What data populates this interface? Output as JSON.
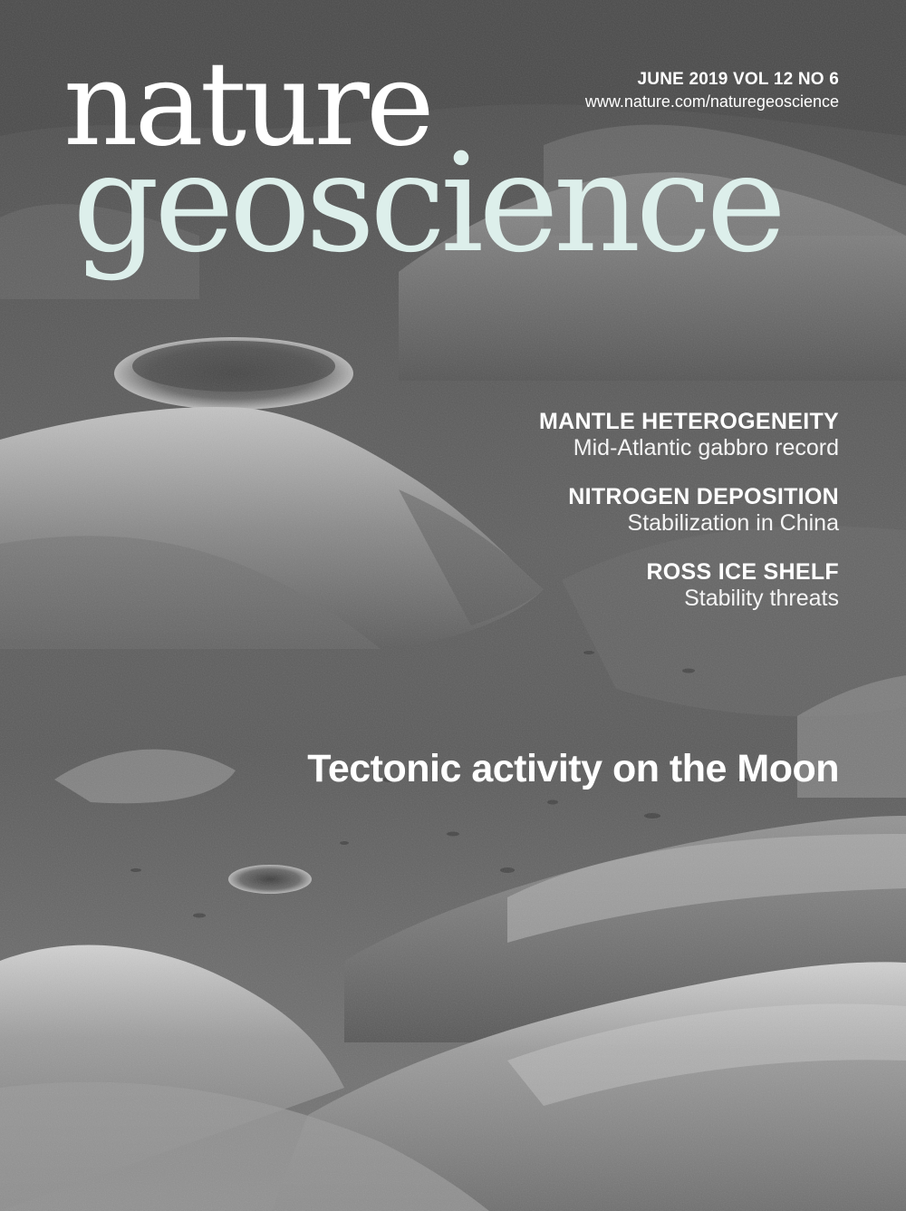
{
  "masthead": {
    "line1": "nature",
    "line2": "geoscience"
  },
  "issue": {
    "date_volume": "JUNE 2019  VOL 12  NO 6",
    "url": "www.nature.com/naturegeoscience"
  },
  "teasers": [
    {
      "title": "MANTLE HETEROGENEITY",
      "subtitle": "Mid-Atlantic gabbro record"
    },
    {
      "title": "NITROGEN DEPOSITION",
      "subtitle": "Stabilization in China"
    },
    {
      "title": "ROSS ICE SHELF",
      "subtitle": "Stability threats"
    }
  ],
  "cover_story": {
    "headline": "Tectonic activity on the Moon"
  },
  "colors": {
    "masthead_nature": "#ffffff",
    "masthead_geoscience": "#ddefeb",
    "text": "#ffffff"
  }
}
